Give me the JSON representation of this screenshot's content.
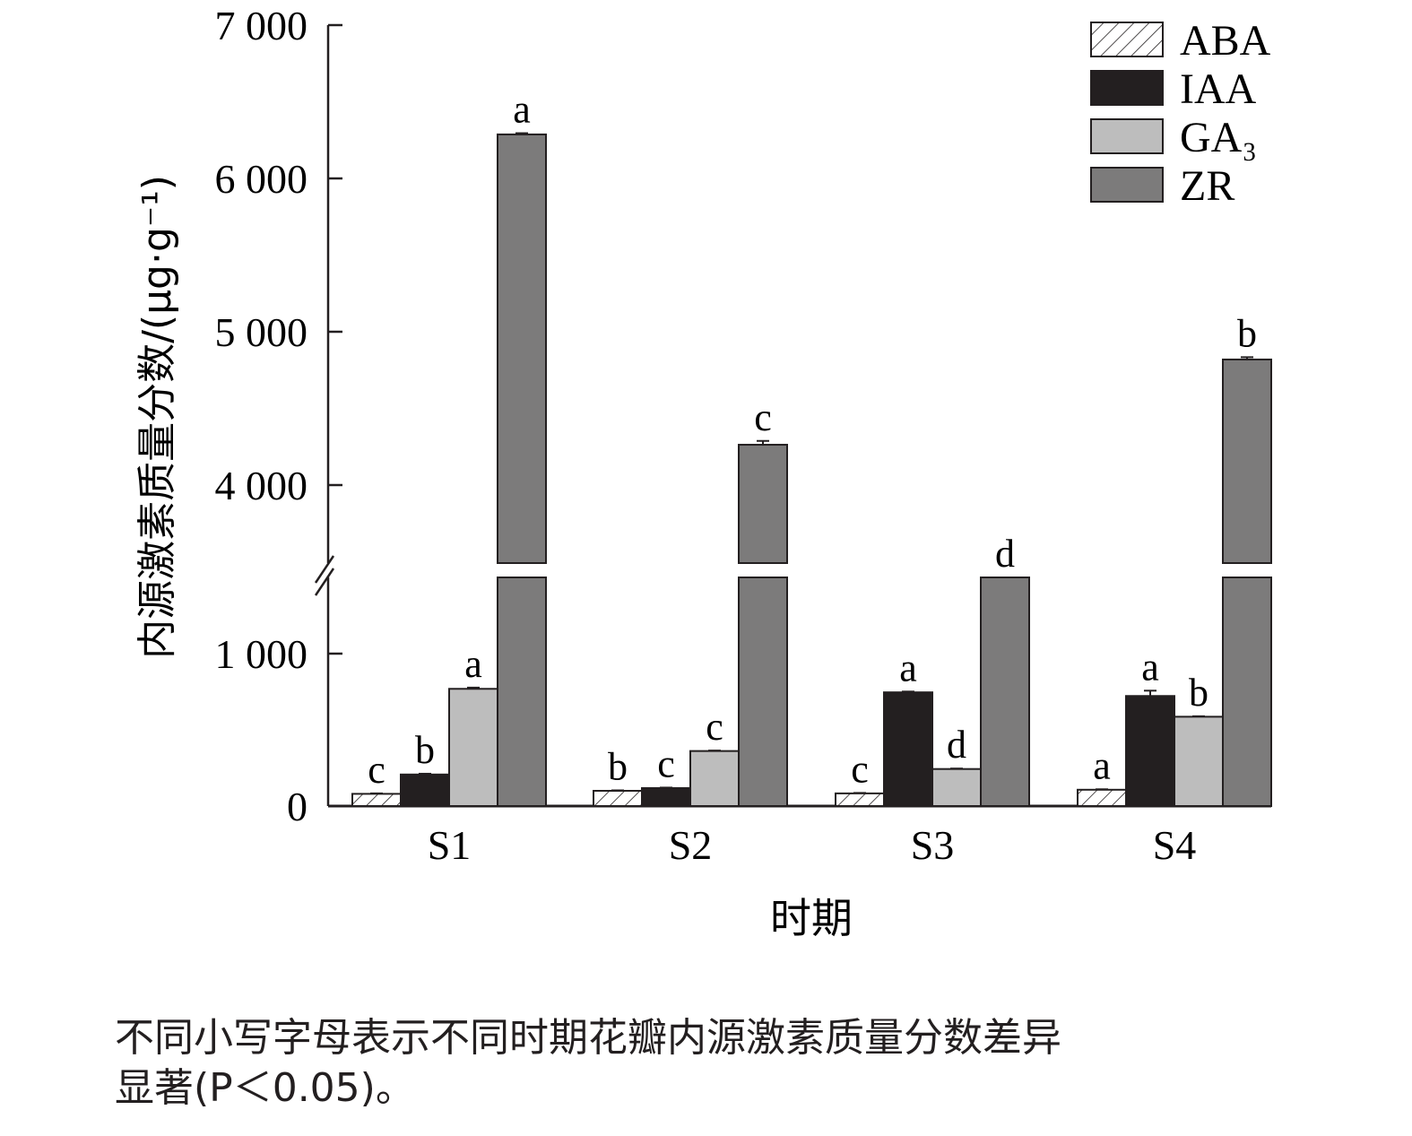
{
  "chart_data": {
    "type": "bar",
    "categories": [
      "S1",
      "S2",
      "S3",
      "S4"
    ],
    "series": [
      {
        "name": "ABA",
        "values": [
          80,
          100,
          83,
          107
        ],
        "errors": [
          3,
          3,
          3,
          3
        ],
        "letters": [
          "c",
          "b",
          "c",
          "a"
        ],
        "fill": "hatch"
      },
      {
        "name": "IAA",
        "values": [
          207,
          118,
          746,
          722
        ],
        "errors": [
          5,
          3,
          5,
          35
        ],
        "letters": [
          "b",
          "c",
          "a",
          "a"
        ],
        "fill": "#231f20"
      },
      {
        "name": "GA₃",
        "values": [
          769,
          361,
          243,
          586
        ],
        "errors": [
          8,
          3,
          3,
          3
        ],
        "letters": [
          "a",
          "c",
          "d",
          "b"
        ],
        "fill": "#bdbdbd"
      },
      {
        "name": "ZR",
        "values": [
          6287,
          4263,
          1500,
          4819
        ],
        "errors": [
          8,
          25,
          0,
          15
        ],
        "letters": [
          "a",
          "c",
          "d",
          "b"
        ],
        "fill": "#7c7b7b"
      }
    ],
    "xlabel": "时期",
    "ylabel": "内源激素质量分数/(μg·g⁻¹)",
    "yticks": [
      {
        "value": 0,
        "label": "0"
      },
      {
        "value": 1000,
        "label": "1 000"
      },
      {
        "value": 4000,
        "label": "4 000"
      },
      {
        "value": 5000,
        "label": "5 000"
      },
      {
        "value": 6000,
        "label": "6 000"
      },
      {
        "value": 7000,
        "label": "7 000"
      }
    ],
    "ylim": [
      0,
      7000
    ],
    "axis_break": [
      1500,
      3500
    ],
    "legend_position": "top-right",
    "grid": false
  },
  "caption": {
    "line1": "不同小写字母表示不同时期花瓣内源激素质量分数差异",
    "line2": "显著(P＜0.05)。"
  }
}
